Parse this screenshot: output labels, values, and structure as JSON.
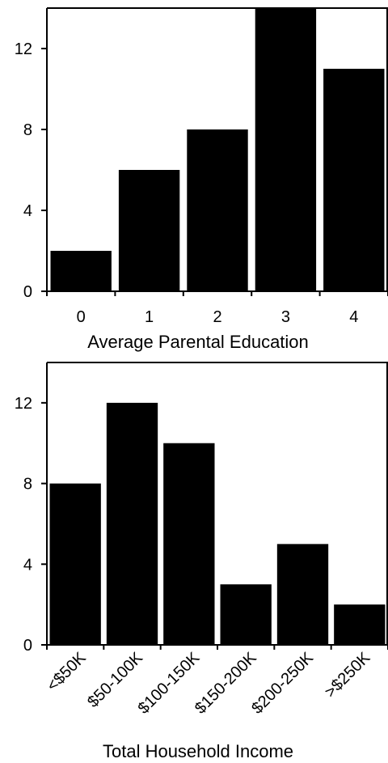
{
  "chart_data": [
    {
      "type": "bar",
      "categories": [
        "0",
        "1",
        "2",
        "3",
        "4"
      ],
      "values": [
        2,
        6,
        8,
        14,
        11
      ],
      "title": "",
      "xlabel": "Average Parental Education",
      "ylabel": "",
      "ylim": [
        0,
        14
      ],
      "yticks": [
        0,
        4,
        8,
        12
      ],
      "grid": false,
      "bar_color": "#000000"
    },
    {
      "type": "bar",
      "categories": [
        "<$50K",
        "$50-100K",
        "$100-150K",
        "$150-200K",
        "$200-250K",
        ">$250K"
      ],
      "values": [
        8,
        12,
        10,
        3,
        5,
        2
      ],
      "title": "",
      "xlabel": "Total Household Income",
      "ylabel": "",
      "ylim": [
        0,
        14
      ],
      "yticks": [
        0,
        4,
        8,
        12
      ],
      "grid": false,
      "bar_color": "#000000"
    }
  ]
}
